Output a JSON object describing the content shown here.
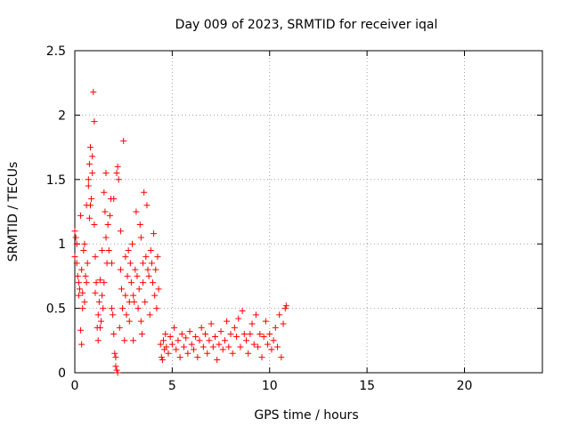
{
  "chart_data": {
    "type": "scatter",
    "title": "Day 009 of 2023, SRMTID for receiver iqal",
    "xlabel": "GPS time / hours",
    "ylabel": "SRMTID / TECUs",
    "xlim": [
      0,
      24
    ],
    "ylim": [
      0,
      2.5
    ],
    "x_ticks": [
      0,
      5,
      10,
      15,
      20
    ],
    "x_tick_labels": [
      "0",
      "5",
      "10",
      "15",
      "20"
    ],
    "y_ticks": [
      0,
      0.5,
      1,
      1.5,
      2,
      2.5
    ],
    "y_tick_labels": [
      "0",
      "0.5",
      "1",
      "1.5",
      "2",
      "2.5"
    ],
    "grid": true,
    "marker": "+",
    "color": "#ff0000",
    "series": [
      {
        "name": "SRMTID",
        "points": [
          [
            0.0,
            1.1
          ],
          [
            0.0,
            0.9
          ],
          [
            0.05,
            1.05
          ],
          [
            0.1,
            0.85
          ],
          [
            0.1,
            1.0
          ],
          [
            0.15,
            0.75
          ],
          [
            0.2,
            0.7
          ],
          [
            0.2,
            0.6
          ],
          [
            0.25,
            0.65
          ],
          [
            0.3,
            0.33
          ],
          [
            0.3,
            1.22
          ],
          [
            0.35,
            0.22
          ],
          [
            0.35,
            0.8
          ],
          [
            0.4,
            0.62
          ],
          [
            0.4,
            0.5
          ],
          [
            0.45,
            0.95
          ],
          [
            0.5,
            1.0
          ],
          [
            0.5,
            0.55
          ],
          [
            0.55,
            0.75
          ],
          [
            0.6,
            0.7
          ],
          [
            0.6,
            1.3
          ],
          [
            0.65,
            0.85
          ],
          [
            0.7,
            1.45
          ],
          [
            0.7,
            1.5
          ],
          [
            0.75,
            1.62
          ],
          [
            0.75,
            1.2
          ],
          [
            0.8,
            1.3
          ],
          [
            0.8,
            1.75
          ],
          [
            0.85,
            1.35
          ],
          [
            0.9,
            1.55
          ],
          [
            0.9,
            1.68
          ],
          [
            0.95,
            2.18
          ],
          [
            1.0,
            1.95
          ],
          [
            1.0,
            1.15
          ],
          [
            1.05,
            0.9
          ],
          [
            1.05,
            0.62
          ],
          [
            1.1,
            0.7
          ],
          [
            1.15,
            0.35
          ],
          [
            1.2,
            0.25
          ],
          [
            1.2,
            0.45
          ],
          [
            1.25,
            0.55
          ],
          [
            1.3,
            0.35
          ],
          [
            1.3,
            0.72
          ],
          [
            1.35,
            0.4
          ],
          [
            1.4,
            0.6
          ],
          [
            1.4,
            0.95
          ],
          [
            1.45,
            0.5
          ],
          [
            1.5,
            0.7
          ],
          [
            1.5,
            1.4
          ],
          [
            1.55,
            1.25
          ],
          [
            1.6,
            1.55
          ],
          [
            1.6,
            1.05
          ],
          [
            1.65,
            0.85
          ],
          [
            1.7,
            1.15
          ],
          [
            1.75,
            0.95
          ],
          [
            1.8,
            1.22
          ],
          [
            1.85,
            1.35
          ],
          [
            1.9,
            0.85
          ],
          [
            1.9,
            0.5
          ],
          [
            1.95,
            0.45
          ],
          [
            2.0,
            1.35
          ],
          [
            2.0,
            0.3
          ],
          [
            2.05,
            0.15
          ],
          [
            2.1,
            0.05
          ],
          [
            2.1,
            0.12
          ],
          [
            2.15,
            1.55
          ],
          [
            2.15,
            0.02
          ],
          [
            2.2,
            0.0
          ],
          [
            2.2,
            1.6
          ],
          [
            2.25,
            1.5
          ],
          [
            2.3,
            0.35
          ],
          [
            2.35,
            0.8
          ],
          [
            2.35,
            1.1
          ],
          [
            2.4,
            0.65
          ],
          [
            2.45,
            0.5
          ],
          [
            2.5,
            1.8
          ],
          [
            2.55,
            0.25
          ],
          [
            2.6,
            0.9
          ],
          [
            2.6,
            0.6
          ],
          [
            2.65,
            0.45
          ],
          [
            2.7,
            0.75
          ],
          [
            2.75,
            0.95
          ],
          [
            2.8,
            0.55
          ],
          [
            2.8,
            0.4
          ],
          [
            2.85,
            0.85
          ],
          [
            2.9,
            0.7
          ],
          [
            2.95,
            1.0
          ],
          [
            3.0,
            0.6
          ],
          [
            3.0,
            0.25
          ],
          [
            3.05,
            0.55
          ],
          [
            3.1,
            0.8
          ],
          [
            3.15,
            1.25
          ],
          [
            3.2,
            0.75
          ],
          [
            3.25,
            0.5
          ],
          [
            3.3,
            0.65
          ],
          [
            3.35,
            1.15
          ],
          [
            3.4,
            1.05
          ],
          [
            3.4,
            0.4
          ],
          [
            3.45,
            0.3
          ],
          [
            3.5,
            0.85
          ],
          [
            3.5,
            0.7
          ],
          [
            3.55,
            1.4
          ],
          [
            3.6,
            0.55
          ],
          [
            3.65,
            0.9
          ],
          [
            3.7,
            1.3
          ],
          [
            3.75,
            0.8
          ],
          [
            3.8,
            0.75
          ],
          [
            3.85,
            0.45
          ],
          [
            3.9,
            0.95
          ],
          [
            3.95,
            0.85
          ],
          [
            4.0,
            0.7
          ],
          [
            4.05,
            1.08
          ],
          [
            4.1,
            0.6
          ],
          [
            4.15,
            0.8
          ],
          [
            4.2,
            0.5
          ],
          [
            4.25,
            0.9
          ],
          [
            4.3,
            0.65
          ],
          [
            4.4,
            0.22
          ],
          [
            4.45,
            0.12
          ],
          [
            4.5,
            0.1
          ],
          [
            4.55,
            0.25
          ],
          [
            4.6,
            0.18
          ],
          [
            4.65,
            0.3
          ],
          [
            4.7,
            0.2
          ],
          [
            4.8,
            0.15
          ],
          [
            4.9,
            0.28
          ],
          [
            5.0,
            0.22
          ],
          [
            5.1,
            0.35
          ],
          [
            5.2,
            0.18
          ],
          [
            5.3,
            0.25
          ],
          [
            5.4,
            0.12
          ],
          [
            5.5,
            0.3
          ],
          [
            5.6,
            0.2
          ],
          [
            5.7,
            0.27
          ],
          [
            5.8,
            0.15
          ],
          [
            5.9,
            0.32
          ],
          [
            6.0,
            0.22
          ],
          [
            6.1,
            0.18
          ],
          [
            6.2,
            0.28
          ],
          [
            6.3,
            0.12
          ],
          [
            6.4,
            0.25
          ],
          [
            6.5,
            0.35
          ],
          [
            6.6,
            0.2
          ],
          [
            6.7,
            0.3
          ],
          [
            6.8,
            0.15
          ],
          [
            6.9,
            0.25
          ],
          [
            7.0,
            0.38
          ],
          [
            7.1,
            0.2
          ],
          [
            7.2,
            0.28
          ],
          [
            7.3,
            0.1
          ],
          [
            7.4,
            0.22
          ],
          [
            7.5,
            0.32
          ],
          [
            7.6,
            0.18
          ],
          [
            7.7,
            0.25
          ],
          [
            7.8,
            0.4
          ],
          [
            7.9,
            0.2
          ],
          [
            8.0,
            0.3
          ],
          [
            8.1,
            0.15
          ],
          [
            8.2,
            0.35
          ],
          [
            8.3,
            0.28
          ],
          [
            8.4,
            0.42
          ],
          [
            8.5,
            0.2
          ],
          [
            8.6,
            0.48
          ],
          [
            8.7,
            0.3
          ],
          [
            8.8,
            0.25
          ],
          [
            8.9,
            0.15
          ],
          [
            9.0,
            0.3
          ],
          [
            9.1,
            0.38
          ],
          [
            9.2,
            0.22
          ],
          [
            9.3,
            0.45
          ],
          [
            9.4,
            0.2
          ],
          [
            9.5,
            0.3
          ],
          [
            9.6,
            0.12
          ],
          [
            9.7,
            0.28
          ],
          [
            9.8,
            0.4
          ],
          [
            9.9,
            0.22
          ],
          [
            10.0,
            0.3
          ],
          [
            10.1,
            0.18
          ],
          [
            10.2,
            0.25
          ],
          [
            10.3,
            0.35
          ],
          [
            10.4,
            0.2
          ],
          [
            10.5,
            0.45
          ],
          [
            10.6,
            0.12
          ],
          [
            10.7,
            0.38
          ],
          [
            10.8,
            0.5
          ],
          [
            10.85,
            0.52
          ]
        ]
      }
    ]
  }
}
